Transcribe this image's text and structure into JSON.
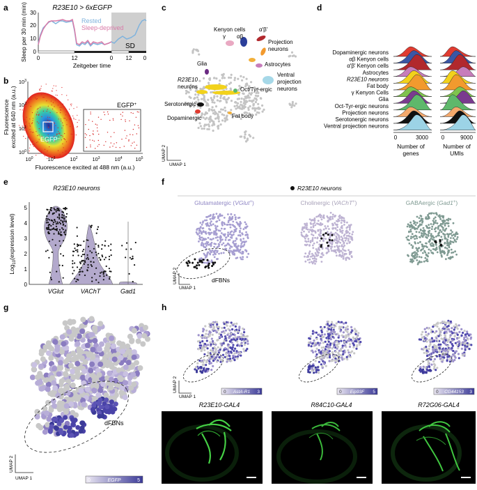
{
  "panel_labels": {
    "a": "a",
    "b": "b",
    "c": "c",
    "d": "d",
    "e": "e",
    "f": "f",
    "g": "g",
    "h": "h"
  },
  "umap": {
    "axis1": "UMAP 1",
    "axis2": "UMAP 2"
  },
  "panel_a": {
    "title": "R23E10 > 6xEGFP",
    "ylabel": "Sleep per 30 min (min)",
    "xlabel": "Zeitgeber time",
    "yticks": [
      "0",
      "10",
      "20",
      "30"
    ],
    "xticks": [
      "0",
      "12",
      "0",
      "12",
      "0"
    ],
    "legend_rested": "Rested",
    "legend_deprived": "Sleep-deprived",
    "sd_label": "SD",
    "colors": {
      "rested": "#7fb3dd",
      "deprived": "#d97aa8",
      "sd": "#cccccc"
    }
  },
  "panel_b": {
    "ylabel_1": "Fluorescence",
    "ylabel_2": "excited at 640 nm (a.u.)",
    "xlabel": "Fluorescence excited at 488 nm (a.u.)",
    "yticks": [
      {
        "base": "10",
        "exp": "0"
      },
      {
        "base": "10",
        "exp": "1"
      },
      {
        "base": "10",
        "exp": "2"
      },
      {
        "base": "10",
        "exp": "3"
      }
    ],
    "xticks": [
      {
        "base": "10",
        "exp": "0"
      },
      {
        "base": "10",
        "exp": "1"
      },
      {
        "base": "10",
        "exp": "2"
      },
      {
        "base": "10",
        "exp": "3"
      },
      {
        "base": "10",
        "exp": "4"
      },
      {
        "base": "10",
        "exp": "5"
      }
    ],
    "gate_pos": "EGFP",
    "gate_pos_sup": "+",
    "gate_neg": "EGFP",
    "gate_neg_sup": "–"
  },
  "panel_c": {
    "labels": {
      "kenyon_1": "Kenyon cells",
      "gamma": "γ",
      "ab": "αβ",
      "apbp": "α′β′",
      "projection_1": "Projection",
      "projection_2": "neurons",
      "astrocytes": "Astrocytes",
      "glia": "Glia",
      "ventral_1": "Ventral",
      "ventral_2": "projection",
      "ventral_3": "neurons",
      "r23_1": "R23E10",
      "r23_2": "neurons",
      "oct": "Oct/Tyr-ergic",
      "fat": "Fat body",
      "serotonergic": "Serotonergic",
      "dopaminergic": "Dopaminergic"
    }
  },
  "panel_d": {
    "rows": [
      {
        "label": "Dopaminergic neurons",
        "color": "#e03c31"
      },
      {
        "label": "αβ Kenyon cells",
        "color": "#3a56a5"
      },
      {
        "label": "α′β′ Kenyon cells",
        "color": "#b1282d"
      },
      {
        "label": "Astrocytes",
        "color": "#c77dbb"
      },
      {
        "label": "R23E10 neurons",
        "color": "#f2d21b"
      },
      {
        "label": "Fat body",
        "color": "#f29a2e"
      },
      {
        "label": "γ Kenyon Cells",
        "color": "#7fc34e"
      },
      {
        "label": "Glia",
        "color": "#7a3b8f"
      },
      {
        "label": "Oct-Tyr-ergic neurons",
        "color": "#5eb86b"
      },
      {
        "label": "Projection neurons",
        "color": "#f4a86b"
      },
      {
        "label": "Serotonergic neurons",
        "color": "#111111"
      },
      {
        "label": "Ventral projection neurons",
        "color": "#9cd3e6"
      }
    ],
    "genes_ticks": [
      "0",
      "3000"
    ],
    "umis_ticks": [
      "0",
      "9000"
    ],
    "xlabel_genes_1": "Number of",
    "xlabel_genes_2": "genes",
    "xlabel_umis_1": "Number of",
    "xlabel_umis_2": "UMIs"
  },
  "panel_e": {
    "title": "R23E10 neurons",
    "ylabel": "Log",
    "ylabel_sub": "10",
    "ylabel_rest": "(expression level)",
    "yticks": [
      "0",
      "1",
      "2",
      "3",
      "4",
      "5"
    ],
    "categories": [
      "VGlut",
      "VAChT",
      "Gad1"
    ],
    "violin_color": "#b3a9cc"
  },
  "panel_f": {
    "legend": "R23E10 neurons",
    "cat1_name": "Glutamatergic (",
    "cat1_gene": "VGlut",
    "cat1_sup": "+",
    "cat2_name": "Cholinergic (",
    "cat2_gene": "VAChT",
    "cat2_sup": "+",
    "cat3_name": "GABAergic (",
    "cat3_gene": "Gad1",
    "cat3_sup": "+",
    "close": ")",
    "dfbns": "dFBNs",
    "colors": {
      "glut": "#a69ed1",
      "chol": "#bdb2d2",
      "gaba": "#7f9a92"
    }
  },
  "panel_g": {
    "dfbns": "dFBNs",
    "scale_min": "0",
    "scale_gene": "EGFP",
    "scale_max": "5"
  },
  "panel_h": {
    "scales": [
      {
        "min": "0",
        "gene": "AstA-R1",
        "max": "3"
      },
      {
        "min": "0",
        "gene": "Eip93F",
        "max": "5"
      },
      {
        "min": "0",
        "gene": "CG44153",
        "max": "3"
      }
    ],
    "lines": [
      "R23E10-GAL4",
      "R84C10-GAL4",
      "R72G06-GAL4"
    ]
  }
}
